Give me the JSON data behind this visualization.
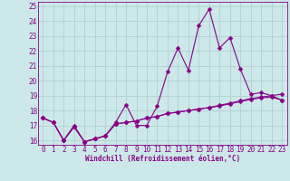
{
  "title": "",
  "xlabel": "Windchill (Refroidissement éolien,°C)",
  "ylabel": "",
  "xlim": [
    -0.5,
    23.5
  ],
  "ylim": [
    15.7,
    25.3
  ],
  "yticks": [
    16,
    17,
    18,
    19,
    20,
    21,
    22,
    23,
    24,
    25
  ],
  "xticks": [
    0,
    1,
    2,
    3,
    4,
    5,
    6,
    7,
    8,
    9,
    10,
    11,
    12,
    13,
    14,
    15,
    16,
    17,
    18,
    19,
    20,
    21,
    22,
    23
  ],
  "bg_color": "#cce8e8",
  "line_color": "#880088",
  "grid_color": "#aacccc",
  "line1_x": [
    0,
    1,
    2,
    3,
    4,
    5,
    6,
    7,
    8,
    9,
    10,
    11,
    12,
    13,
    14,
    15,
    16,
    17,
    18,
    19,
    20,
    21,
    22,
    23
  ],
  "line1_y": [
    17.5,
    17.2,
    16.0,
    17.0,
    15.9,
    16.1,
    16.3,
    17.2,
    18.4,
    17.0,
    17.0,
    18.3,
    20.6,
    22.2,
    20.7,
    23.7,
    24.8,
    22.2,
    22.9,
    20.8,
    19.1,
    19.2,
    19.0,
    18.7
  ],
  "line2_x": [
    0,
    1,
    2,
    3,
    4,
    5,
    6,
    7,
    8,
    9,
    10,
    11,
    12,
    13,
    14,
    15,
    16,
    17,
    18,
    19,
    20,
    21,
    22,
    23
  ],
  "line2_y": [
    17.5,
    17.2,
    16.0,
    16.9,
    15.9,
    16.1,
    16.3,
    17.1,
    17.2,
    17.3,
    17.5,
    17.6,
    17.8,
    17.9,
    18.0,
    18.1,
    18.2,
    18.35,
    18.5,
    18.65,
    18.8,
    18.9,
    19.0,
    19.1
  ],
  "line3_x": [
    0,
    1,
    2,
    3,
    4,
    5,
    6,
    7,
    8,
    9,
    10,
    11,
    12,
    13,
    14,
    15,
    16,
    17,
    18,
    19,
    20,
    21,
    22,
    23
  ],
  "line3_y": [
    17.5,
    17.2,
    16.0,
    16.9,
    15.9,
    16.1,
    16.3,
    17.1,
    17.2,
    17.3,
    17.5,
    17.6,
    17.8,
    17.9,
    18.0,
    18.1,
    18.2,
    18.3,
    18.45,
    18.6,
    18.75,
    18.85,
    18.9,
    18.7
  ],
  "tick_fontsize": 5.5,
  "xlabel_fontsize": 5.5,
  "marker_size": 2.5,
  "line_width": 0.8
}
